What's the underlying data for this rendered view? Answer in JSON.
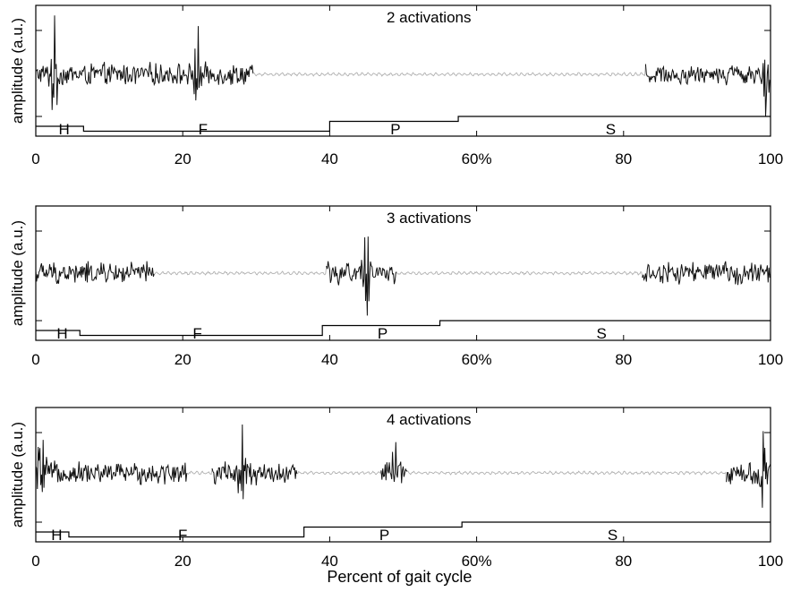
{
  "chart_data": [
    {
      "type": "line",
      "title": "2 activations",
      "ylabel": "amplitude (a.u.)",
      "xlim": [
        0,
        100
      ],
      "x_ticks": [
        "0",
        "20",
        "40",
        "60%",
        "80",
        "100"
      ],
      "active_ranges": [
        [
          0,
          29.5
        ],
        [
          83,
          100
        ]
      ],
      "phases": [
        {
          "label": "H",
          "start": 0,
          "end": 6.5,
          "level": 3
        },
        {
          "label": "F",
          "start": 6.5,
          "end": 40,
          "level": 2
        },
        {
          "label": "P",
          "start": 40,
          "end": 57.5,
          "level": 4
        },
        {
          "label": "S",
          "start": 57.5,
          "end": 100,
          "level": 5
        }
      ],
      "spikes": [
        [
          2.5,
          1.0
        ],
        [
          22,
          1.0
        ],
        [
          99.5,
          1.0
        ]
      ]
    },
    {
      "type": "line",
      "title": "3 activations",
      "ylabel": "amplitude (a.u.)",
      "xlim": [
        0,
        100
      ],
      "x_ticks": [
        "0",
        "20",
        "40",
        "60%",
        "80",
        "100"
      ],
      "active_ranges": [
        [
          0,
          16
        ],
        [
          39.5,
          49
        ],
        [
          82.5,
          100
        ]
      ],
      "phases": [
        {
          "label": "H",
          "start": 0,
          "end": 6,
          "level": 3
        },
        {
          "label": "F",
          "start": 6,
          "end": 39,
          "level": 2
        },
        {
          "label": "P",
          "start": 39,
          "end": 55,
          "level": 4
        },
        {
          "label": "S",
          "start": 55,
          "end": 100,
          "level": 5
        }
      ],
      "spikes": [
        [
          45,
          1.0
        ]
      ]
    },
    {
      "type": "line",
      "title": "4 activations",
      "ylabel": "amplitude (a.u.)",
      "xlabel": "Percent of gait cycle",
      "xlim": [
        0,
        100
      ],
      "x_ticks": [
        "0",
        "20",
        "40",
        "60%",
        "80",
        "100"
      ],
      "active_ranges": [
        [
          0,
          20.5
        ],
        [
          24,
          35.5
        ],
        [
          47,
          50.5
        ],
        [
          94,
          100
        ]
      ],
      "phases": [
        {
          "label": "H",
          "start": 0,
          "end": 4.5,
          "level": 3
        },
        {
          "label": "F",
          "start": 4.5,
          "end": 36.5,
          "level": 2
        },
        {
          "label": "P",
          "start": 36.5,
          "end": 58,
          "level": 4
        },
        {
          "label": "S",
          "start": 58,
          "end": 100,
          "level": 5
        }
      ],
      "spikes": [
        [
          0.8,
          1.0
        ],
        [
          28,
          1.0
        ],
        [
          49,
          1.0
        ],
        [
          99,
          1.0
        ]
      ]
    }
  ]
}
